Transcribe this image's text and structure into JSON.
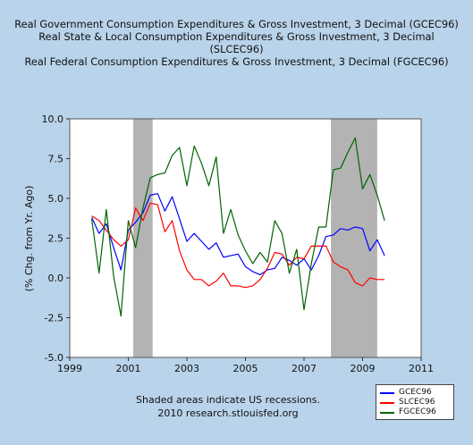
{
  "chart_data": {
    "type": "line",
    "title": [
      "Real Government Consumption Expenditures & Gross Investment, 3 Decimal (GCEC96)",
      "Real State & Local Consumption Expenditures & Gross Investment, 3 Decimal (SLCEC96)",
      "Real Federal Consumption Expenditures & Gross Investment, 3 Decimal (FGCEC96)"
    ],
    "xlabel": "",
    "ylabel": "(% Chg. from Yr. Ago)",
    "xlim": [
      1999,
      2011
    ],
    "ylim": [
      -5.0,
      10.0
    ],
    "xticks": [
      "1999",
      "2001",
      "2003",
      "2005",
      "2007",
      "2009",
      "2011"
    ],
    "yticks": [
      "-5.0",
      "-2.5",
      "0.0",
      "2.5",
      "5.0",
      "7.5",
      "10.0"
    ],
    "grid": false,
    "legend_position": "bottom-right",
    "recessions": [
      [
        2001.17,
        2001.83
      ],
      [
        2007.92,
        2009.5
      ]
    ],
    "x": [
      1999.75,
      2000.0,
      2000.25,
      2000.5,
      2000.75,
      2001.0,
      2001.25,
      2001.5,
      2001.75,
      2002.0,
      2002.25,
      2002.5,
      2002.75,
      2003.0,
      2003.25,
      2003.5,
      2003.75,
      2004.0,
      2004.25,
      2004.5,
      2004.75,
      2005.0,
      2005.25,
      2005.5,
      2005.75,
      2006.0,
      2006.25,
      2006.5,
      2006.75,
      2007.0,
      2007.25,
      2007.5,
      2007.75,
      2008.0,
      2008.25,
      2008.5,
      2008.75,
      2009.0,
      2009.25,
      2009.5,
      2009.75
    ],
    "series": [
      {
        "name": "GCEC96",
        "color": "#0000ff",
        "values": [
          3.8,
          2.8,
          3.4,
          1.9,
          0.5,
          3.0,
          3.5,
          4.1,
          5.2,
          5.3,
          4.2,
          5.1,
          3.7,
          2.3,
          2.8,
          2.3,
          1.8,
          2.2,
          1.3,
          1.4,
          1.5,
          0.7,
          0.4,
          0.2,
          0.5,
          0.6,
          1.3,
          1.1,
          0.8,
          1.2,
          0.5,
          1.4,
          2.6,
          2.7,
          3.1,
          3.0,
          3.2,
          3.1,
          1.7,
          2.4,
          1.4
        ]
      },
      {
        "name": "SLCEC96",
        "color": "#ff0000",
        "values": [
          3.9,
          3.6,
          3.0,
          2.4,
          2.0,
          2.4,
          4.4,
          3.6,
          4.7,
          4.6,
          2.9,
          3.6,
          1.7,
          0.5,
          -0.1,
          -0.1,
          -0.5,
          -0.2,
          0.3,
          -0.5,
          -0.5,
          -0.6,
          -0.5,
          -0.1,
          0.6,
          1.6,
          1.5,
          0.8,
          1.3,
          1.2,
          2.0,
          2.0,
          2.0,
          1.0,
          0.7,
          0.5,
          -0.3,
          -0.5,
          0.0,
          -0.1,
          -0.1
        ]
      },
      {
        "name": "FGCEC96",
        "color": "#006400",
        "values": [
          3.7,
          0.3,
          4.3,
          0.1,
          -2.4,
          3.6,
          1.9,
          4.4,
          6.3,
          6.5,
          6.6,
          7.7,
          8.2,
          5.8,
          8.3,
          7.2,
          5.8,
          7.6,
          2.8,
          4.3,
          2.7,
          1.7,
          0.9,
          1.6,
          1.0,
          3.6,
          2.8,
          0.3,
          1.8,
          -2.0,
          0.9,
          3.2,
          3.2,
          6.8,
          6.9,
          7.9,
          8.8,
          5.6,
          6.5,
          5.2,
          3.6
        ]
      }
    ]
  },
  "footer": {
    "note": "Shaded areas indicate US recessions.",
    "source": "2010 research.stlouisfed.org"
  }
}
